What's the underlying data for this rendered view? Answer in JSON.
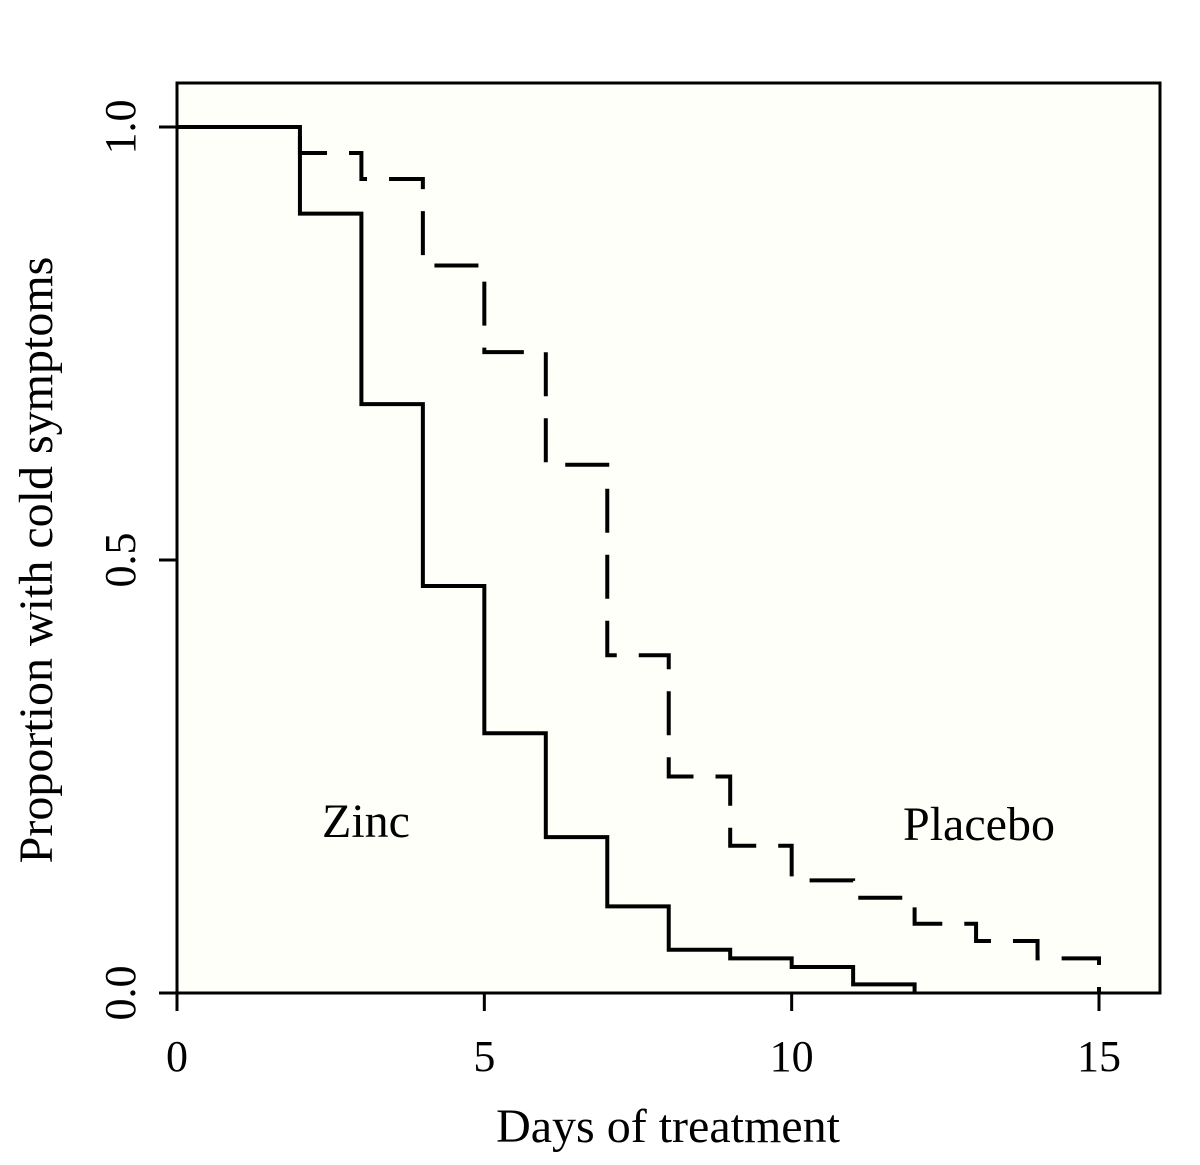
{
  "chart_data": {
    "type": "line",
    "title": "",
    "xlabel": "Days of treatment",
    "ylabel": "Proportion with cold symptoms",
    "xlim": [
      0,
      16
    ],
    "ylim": [
      0,
      1.05
    ],
    "xticks": [
      0,
      5,
      10,
      15
    ],
    "xtick_labels": [
      "0",
      "5",
      "10",
      "15"
    ],
    "yticks": [
      0,
      0.5,
      1
    ],
    "ytick_labels": [
      "0.0",
      "0.5",
      "1.0"
    ],
    "grid": false,
    "background_color": "#fffffa",
    "line_color": "#000000",
    "annotations": {
      "zinc": "Zinc",
      "placebo": "Placebo"
    },
    "series": [
      {
        "name": "Zinc",
        "style": "solid",
        "step": true,
        "x": [
          0,
          2,
          3,
          4,
          5,
          6,
          7,
          8,
          9,
          10,
          11,
          12
        ],
        "y": [
          1.0,
          0.9,
          0.68,
          0.47,
          0.3,
          0.18,
          0.1,
          0.05,
          0.04,
          0.03,
          0.01,
          0.0
        ]
      },
      {
        "name": "Placebo",
        "style": "dashed",
        "step": true,
        "x": [
          0,
          2,
          3,
          4,
          5,
          6,
          7,
          8,
          9,
          10,
          11,
          12,
          13,
          14,
          15
        ],
        "y": [
          1.0,
          0.97,
          0.94,
          0.84,
          0.74,
          0.61,
          0.39,
          0.25,
          0.17,
          0.13,
          0.11,
          0.08,
          0.06,
          0.04,
          0.0
        ]
      }
    ]
  }
}
